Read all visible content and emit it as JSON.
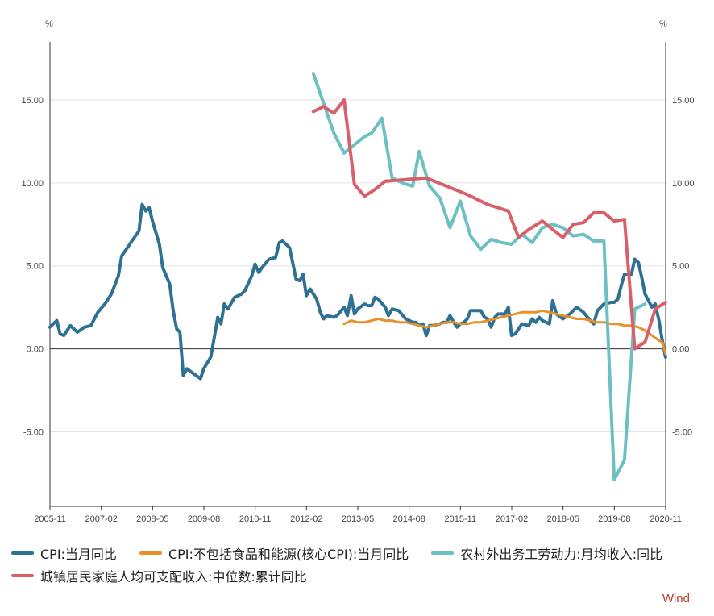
{
  "source_label": "Wind",
  "chart_data": {
    "type": "line",
    "y_unit_left": "%",
    "y_unit_right": "%",
    "ylim": [
      -9.5,
      18.5
    ],
    "y_ticks": [
      -5,
      0,
      5,
      10,
      15
    ],
    "y_tick_labels": [
      "-5.00",
      "0.00",
      "5.00",
      "10.00",
      "15.00"
    ],
    "x_ticks": [
      {
        "t": 2005.833,
        "label": "2005-11"
      },
      {
        "t": 2007.083,
        "label": "2007-02"
      },
      {
        "t": 2008.333,
        "label": "2008-05"
      },
      {
        "t": 2009.583,
        "label": "2009-08"
      },
      {
        "t": 2010.833,
        "label": "2010-11"
      },
      {
        "t": 2012.083,
        "label": "2012-02"
      },
      {
        "t": 2013.333,
        "label": "2013-05"
      },
      {
        "t": 2014.583,
        "label": "2014-08"
      },
      {
        "t": 2015.833,
        "label": "2015-11"
      },
      {
        "t": 2017.083,
        "label": "2017-02"
      },
      {
        "t": 2018.333,
        "label": "2018-05"
      },
      {
        "t": 2019.583,
        "label": "2019-08"
      },
      {
        "t": 2020.833,
        "label": "2020-11"
      }
    ],
    "xlim": [
      2005.833,
      2020.833
    ],
    "grid": true,
    "legend_position": "bottom",
    "series": [
      {
        "name": "CPI:当月同比",
        "color": "#2e7193",
        "points": [
          [
            2005.83,
            1.3
          ],
          [
            2006.0,
            1.7
          ],
          [
            2006.08,
            0.9
          ],
          [
            2006.17,
            0.8
          ],
          [
            2006.33,
            1.4
          ],
          [
            2006.5,
            1.0
          ],
          [
            2006.67,
            1.3
          ],
          [
            2006.83,
            1.4
          ],
          [
            2007.0,
            2.2
          ],
          [
            2007.17,
            2.7
          ],
          [
            2007.33,
            3.3
          ],
          [
            2007.5,
            4.4
          ],
          [
            2007.58,
            5.6
          ],
          [
            2007.75,
            6.2
          ],
          [
            2007.83,
            6.5
          ],
          [
            2008.0,
            7.1
          ],
          [
            2008.08,
            8.7
          ],
          [
            2008.17,
            8.3
          ],
          [
            2008.25,
            8.5
          ],
          [
            2008.33,
            7.7
          ],
          [
            2008.5,
            6.3
          ],
          [
            2008.58,
            4.9
          ],
          [
            2008.75,
            3.9
          ],
          [
            2008.83,
            2.4
          ],
          [
            2008.92,
            1.2
          ],
          [
            2009.0,
            1.0
          ],
          [
            2009.08,
            -1.6
          ],
          [
            2009.17,
            -1.2
          ],
          [
            2009.33,
            -1.5
          ],
          [
            2009.5,
            -1.8
          ],
          [
            2009.58,
            -1.2
          ],
          [
            2009.75,
            -0.5
          ],
          [
            2009.83,
            0.6
          ],
          [
            2009.92,
            1.9
          ],
          [
            2010.0,
            1.5
          ],
          [
            2010.08,
            2.7
          ],
          [
            2010.17,
            2.4
          ],
          [
            2010.33,
            3.1
          ],
          [
            2010.5,
            3.3
          ],
          [
            2010.58,
            3.5
          ],
          [
            2010.75,
            4.4
          ],
          [
            2010.83,
            5.1
          ],
          [
            2010.92,
            4.6
          ],
          [
            2011.0,
            4.9
          ],
          [
            2011.17,
            5.4
          ],
          [
            2011.33,
            5.5
          ],
          [
            2011.42,
            6.4
          ],
          [
            2011.5,
            6.5
          ],
          [
            2011.67,
            6.1
          ],
          [
            2011.83,
            4.2
          ],
          [
            2011.92,
            4.1
          ],
          [
            2012.0,
            4.5
          ],
          [
            2012.08,
            3.2
          ],
          [
            2012.17,
            3.6
          ],
          [
            2012.33,
            3.0
          ],
          [
            2012.42,
            2.2
          ],
          [
            2012.5,
            1.8
          ],
          [
            2012.58,
            2.0
          ],
          [
            2012.75,
            1.9
          ],
          [
            2012.83,
            2.0
          ],
          [
            2013.0,
            2.5
          ],
          [
            2013.08,
            2.0
          ],
          [
            2013.17,
            3.2
          ],
          [
            2013.25,
            2.1
          ],
          [
            2013.33,
            2.4
          ],
          [
            2013.5,
            2.7
          ],
          [
            2013.58,
            2.6
          ],
          [
            2013.67,
            2.6
          ],
          [
            2013.75,
            3.1
          ],
          [
            2013.83,
            3.0
          ],
          [
            2014.0,
            2.5
          ],
          [
            2014.08,
            2.0
          ],
          [
            2014.17,
            2.4
          ],
          [
            2014.33,
            2.3
          ],
          [
            2014.5,
            1.8
          ],
          [
            2014.67,
            1.6
          ],
          [
            2014.75,
            1.6
          ],
          [
            2014.83,
            1.4
          ],
          [
            2014.92,
            1.5
          ],
          [
            2015.0,
            0.8
          ],
          [
            2015.08,
            1.4
          ],
          [
            2015.17,
            1.4
          ],
          [
            2015.33,
            1.5
          ],
          [
            2015.42,
            1.6
          ],
          [
            2015.5,
            1.6
          ],
          [
            2015.58,
            2.0
          ],
          [
            2015.67,
            1.6
          ],
          [
            2015.75,
            1.3
          ],
          [
            2015.83,
            1.5
          ],
          [
            2015.92,
            1.6
          ],
          [
            2016.0,
            1.8
          ],
          [
            2016.08,
            2.3
          ],
          [
            2016.17,
            2.3
          ],
          [
            2016.33,
            2.3
          ],
          [
            2016.42,
            1.9
          ],
          [
            2016.5,
            1.8
          ],
          [
            2016.58,
            1.3
          ],
          [
            2016.67,
            1.9
          ],
          [
            2016.75,
            2.1
          ],
          [
            2016.92,
            2.1
          ],
          [
            2017.0,
            2.5
          ],
          [
            2017.08,
            0.8
          ],
          [
            2017.17,
            0.9
          ],
          [
            2017.33,
            1.5
          ],
          [
            2017.5,
            1.4
          ],
          [
            2017.58,
            1.8
          ],
          [
            2017.67,
            1.6
          ],
          [
            2017.75,
            1.9
          ],
          [
            2017.83,
            1.7
          ],
          [
            2018.0,
            1.5
          ],
          [
            2018.08,
            2.9
          ],
          [
            2018.17,
            2.1
          ],
          [
            2018.33,
            1.8
          ],
          [
            2018.5,
            2.1
          ],
          [
            2018.58,
            2.3
          ],
          [
            2018.67,
            2.5
          ],
          [
            2018.83,
            2.2
          ],
          [
            2019.0,
            1.7
          ],
          [
            2019.08,
            1.5
          ],
          [
            2019.17,
            2.3
          ],
          [
            2019.33,
            2.7
          ],
          [
            2019.5,
            2.8
          ],
          [
            2019.58,
            2.8
          ],
          [
            2019.67,
            3.0
          ],
          [
            2019.75,
            3.8
          ],
          [
            2019.83,
            4.5
          ],
          [
            2020.0,
            4.5
          ],
          [
            2020.08,
            5.4
          ],
          [
            2020.17,
            5.2
          ],
          [
            2020.25,
            4.3
          ],
          [
            2020.33,
            3.3
          ],
          [
            2020.5,
            2.5
          ],
          [
            2020.58,
            2.7
          ],
          [
            2020.67,
            1.7
          ],
          [
            2020.75,
            0.5
          ],
          [
            2020.83,
            -0.5
          ]
        ]
      },
      {
        "name": "CPI:不包括食品和能源(核心CPI):当月同比",
        "color": "#e8902a",
        "points": [
          [
            2013.0,
            1.5
          ],
          [
            2013.17,
            1.7
          ],
          [
            2013.33,
            1.6
          ],
          [
            2013.5,
            1.6
          ],
          [
            2013.67,
            1.7
          ],
          [
            2013.83,
            1.8
          ],
          [
            2014.0,
            1.7
          ],
          [
            2014.17,
            1.7
          ],
          [
            2014.33,
            1.6
          ],
          [
            2014.5,
            1.6
          ],
          [
            2014.67,
            1.5
          ],
          [
            2014.83,
            1.4
          ],
          [
            2015.0,
            1.3
          ],
          [
            2015.17,
            1.4
          ],
          [
            2015.33,
            1.5
          ],
          [
            2015.5,
            1.6
          ],
          [
            2015.67,
            1.6
          ],
          [
            2015.83,
            1.5
          ],
          [
            2016.0,
            1.5
          ],
          [
            2016.17,
            1.6
          ],
          [
            2016.33,
            1.6
          ],
          [
            2016.5,
            1.7
          ],
          [
            2016.67,
            1.8
          ],
          [
            2016.83,
            1.9
          ],
          [
            2017.0,
            2.0
          ],
          [
            2017.17,
            2.1
          ],
          [
            2017.33,
            2.2
          ],
          [
            2017.5,
            2.2
          ],
          [
            2017.67,
            2.2
          ],
          [
            2017.83,
            2.3
          ],
          [
            2018.0,
            2.2
          ],
          [
            2018.17,
            2.1
          ],
          [
            2018.33,
            2.0
          ],
          [
            2018.5,
            1.9
          ],
          [
            2018.67,
            1.8
          ],
          [
            2018.83,
            1.8
          ],
          [
            2019.0,
            1.7
          ],
          [
            2019.17,
            1.6
          ],
          [
            2019.33,
            1.6
          ],
          [
            2019.5,
            1.5
          ],
          [
            2019.67,
            1.5
          ],
          [
            2019.83,
            1.4
          ],
          [
            2020.0,
            1.4
          ],
          [
            2020.17,
            1.3
          ],
          [
            2020.33,
            1.1
          ],
          [
            2020.5,
            0.8
          ],
          [
            2020.67,
            0.5
          ],
          [
            2020.75,
            0.4
          ],
          [
            2020.83,
            -0.3
          ]
        ]
      },
      {
        "name": "农村外出务工劳动力:月均收入:同比",
        "color": "#6cc0c2",
        "points": [
          [
            2012.25,
            16.6
          ],
          [
            2012.5,
            14.8
          ],
          [
            2012.75,
            13.0
          ],
          [
            2013.0,
            11.8
          ],
          [
            2013.25,
            12.3
          ],
          [
            2013.5,
            12.8
          ],
          [
            2013.67,
            13.0
          ],
          [
            2013.92,
            13.9
          ],
          [
            2014.17,
            10.3
          ],
          [
            2014.42,
            10.0
          ],
          [
            2014.67,
            9.8
          ],
          [
            2014.83,
            11.9
          ],
          [
            2015.08,
            9.8
          ],
          [
            2015.33,
            9.1
          ],
          [
            2015.58,
            7.3
          ],
          [
            2015.83,
            8.9
          ],
          [
            2016.08,
            6.8
          ],
          [
            2016.33,
            6.0
          ],
          [
            2016.58,
            6.6
          ],
          [
            2016.83,
            6.4
          ],
          [
            2017.08,
            6.3
          ],
          [
            2017.33,
            6.9
          ],
          [
            2017.58,
            6.4
          ],
          [
            2017.83,
            7.3
          ],
          [
            2018.08,
            7.5
          ],
          [
            2018.33,
            7.3
          ],
          [
            2018.58,
            6.8
          ],
          [
            2018.83,
            6.9
          ],
          [
            2019.08,
            6.5
          ],
          [
            2019.33,
            6.5
          ],
          [
            2019.58,
            -7.9
          ],
          [
            2019.83,
            -6.7
          ],
          [
            2020.08,
            2.4
          ],
          [
            2020.33,
            2.7
          ]
        ]
      },
      {
        "name": "城镇居民家庭人均可支配收入:中位数:累计同比",
        "color": "#d9606a",
        "points": [
          [
            2012.25,
            14.3
          ],
          [
            2012.5,
            14.6
          ],
          [
            2012.75,
            14.2
          ],
          [
            2013.0,
            15.0
          ],
          [
            2013.25,
            9.9
          ],
          [
            2013.5,
            9.2
          ],
          [
            2013.75,
            9.6
          ],
          [
            2014.0,
            10.1
          ],
          [
            2014.5,
            10.2
          ],
          [
            2015.0,
            10.3
          ],
          [
            2015.5,
            9.8
          ],
          [
            2016.0,
            9.3
          ],
          [
            2016.5,
            8.7
          ],
          [
            2017.0,
            8.3
          ],
          [
            2017.25,
            6.7
          ],
          [
            2017.5,
            7.2
          ],
          [
            2017.83,
            7.7
          ],
          [
            2018.08,
            7.2
          ],
          [
            2018.33,
            6.7
          ],
          [
            2018.58,
            7.5
          ],
          [
            2018.83,
            7.6
          ],
          [
            2019.08,
            8.2
          ],
          [
            2019.33,
            8.2
          ],
          [
            2019.58,
            7.7
          ],
          [
            2019.83,
            7.8
          ],
          [
            2020.08,
            0.0
          ],
          [
            2020.33,
            0.4
          ],
          [
            2020.58,
            2.4
          ],
          [
            2020.83,
            2.8
          ]
        ]
      }
    ]
  }
}
